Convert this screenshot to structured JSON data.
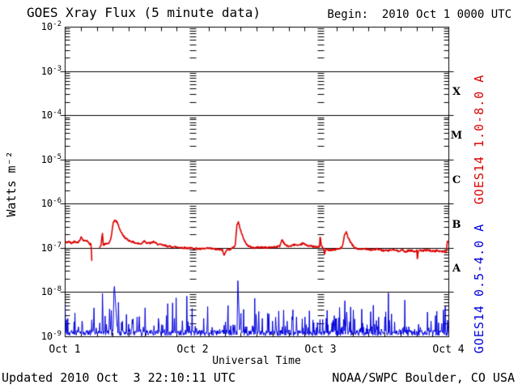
{
  "header": {
    "title": "GOES Xray Flux (5 minute data)",
    "begin_label": "Begin:  2010 Oct 1 0000 UTC"
  },
  "footer": {
    "updated": "Updated 2010 Oct  3 22:10:11 UTC",
    "source": "NOAA/SWPC Boulder, CO USA"
  },
  "colors": {
    "background": "#ffffff",
    "axis": "#000000",
    "long_channel": "#dc0000",
    "short_channel": "#0000dc"
  },
  "chart_data": {
    "type": "line",
    "title": "GOES Xray Flux (5 minute data)",
    "xlabel": "Universal Time",
    "ylabel": "Watts m⁻²",
    "begin": "2010 Oct 1 0000 UTC",
    "x_ticks": [
      "Oct 1",
      "Oct 2",
      "Oct 3",
      "Oct 4"
    ],
    "x_range_hours": [
      0,
      72
    ],
    "x_minor_tick_hours": 3,
    "y_scale": "log",
    "y_range": [
      1e-09,
      0.01
    ],
    "y_tick_exponents": [
      -2,
      -3,
      -4,
      -5,
      -6,
      -7,
      -8,
      -9
    ],
    "grid": {
      "horizontal_major": "solid",
      "day_boundary_columns": "log-minor-dashes"
    },
    "legend_position": "right-rotated",
    "flare_classes": [
      {
        "label": "X",
        "between_exponents": [
          -4,
          -3
        ]
      },
      {
        "label": "M",
        "between_exponents": [
          -5,
          -4
        ]
      },
      {
        "label": "C",
        "between_exponents": [
          -6,
          -5
        ]
      },
      {
        "label": "B",
        "between_exponents": [
          -7,
          -6
        ]
      },
      {
        "label": "A",
        "between_exponents": [
          -8,
          -7
        ]
      }
    ],
    "series": [
      {
        "name": "GOES14 1.0-8.0 A",
        "color": "#dc0000",
        "kind": "keypoints_log_interp",
        "sample_minutes": 5,
        "noise_decades": 0.04,
        "keypoints": [
          [
            0,
            1.35e-07
          ],
          [
            0.7,
            1.4e-07
          ],
          [
            1.2,
            1.3e-07
          ],
          [
            1.8,
            1.45e-07
          ],
          [
            2.3,
            1.35e-07
          ],
          [
            2.8,
            1.5e-07
          ],
          [
            3.0,
            1.9e-07
          ],
          [
            3.3,
            1.55e-07
          ],
          [
            3.8,
            1.45e-07
          ],
          [
            4.1,
            1.55e-07
          ],
          [
            4.4,
            1.3e-07
          ],
          [
            4.9,
            1.2e-07
          ],
          [
            4.95,
            5.5e-08
          ],
          [
            5.1,
            5.5e-08
          ],
          [
            5.15,
            null
          ],
          [
            6.4,
            1.05e-07
          ],
          [
            6.7,
            1.1e-07
          ],
          [
            7.0,
            2.2e-07
          ],
          [
            7.15,
            1.2e-07
          ],
          [
            7.6,
            1.25e-07
          ],
          [
            8.2,
            1.3e-07
          ],
          [
            8.6,
            1.6e-07
          ],
          [
            9.0,
            3.8e-07
          ],
          [
            9.4,
            4.3e-07
          ],
          [
            9.8,
            3.8e-07
          ],
          [
            10.3,
            2.6e-07
          ],
          [
            10.8,
            2e-07
          ],
          [
            11.4,
            1.65e-07
          ],
          [
            12.0,
            1.5e-07
          ],
          [
            12.6,
            1.4e-07
          ],
          [
            13.4,
            1.3e-07
          ],
          [
            14.2,
            1.25e-07
          ],
          [
            14.9,
            1.5e-07
          ],
          [
            15.3,
            1.32e-07
          ],
          [
            16.1,
            1.3e-07
          ],
          [
            16.6,
            1.42e-07
          ],
          [
            17.2,
            1.25e-07
          ],
          [
            18.2,
            1.18e-07
          ],
          [
            19.5,
            1.1e-07
          ],
          [
            21,
            1.06e-07
          ],
          [
            22.5,
            1.02e-07
          ],
          [
            24,
            1e-07
          ],
          [
            25.5,
            9.6e-08
          ],
          [
            27,
            1e-07
          ],
          [
            28.5,
            9.4e-08
          ],
          [
            29.5,
            9.2e-08
          ],
          [
            29.85,
            6.8e-08
          ],
          [
            30.2,
            9.2e-08
          ],
          [
            31.2,
            9.6e-08
          ],
          [
            31.9,
            1.15e-07
          ],
          [
            32.25,
            3.4e-07
          ],
          [
            32.5,
            3.9e-07
          ],
          [
            32.9,
            2.7e-07
          ],
          [
            33.4,
            1.7e-07
          ],
          [
            34,
            1.25e-07
          ],
          [
            34.6,
            1.08e-07
          ],
          [
            35.5,
            1.02e-07
          ],
          [
            36.5,
            1.06e-07
          ],
          [
            38,
            1.03e-07
          ],
          [
            39.5,
            1.08e-07
          ],
          [
            40.3,
            1.12e-07
          ],
          [
            40.7,
            1.6e-07
          ],
          [
            41.1,
            1.3e-07
          ],
          [
            41.6,
            1.12e-07
          ],
          [
            42.3,
            1.12e-07
          ],
          [
            43.1,
            1.22e-07
          ],
          [
            43.8,
            1.12e-07
          ],
          [
            44.6,
            1.3e-07
          ],
          [
            45.2,
            1.18e-07
          ],
          [
            46.2,
            1.12e-07
          ],
          [
            47.2,
            1.06e-07
          ],
          [
            47.75,
            1.1e-07
          ],
          [
            47.85,
            2.05e-07
          ],
          [
            48.05,
            1.15e-07
          ],
          [
            48.5,
            9.8e-08
          ],
          [
            48.7,
            7.2e-08
          ],
          [
            48.9,
            9.4e-08
          ],
          [
            50,
            9.2e-08
          ],
          [
            51.2,
            9.6e-08
          ],
          [
            52,
            1.05e-07
          ],
          [
            52.4,
            1.9e-07
          ],
          [
            52.75,
            2.3e-07
          ],
          [
            53.3,
            1.55e-07
          ],
          [
            53.9,
            1.18e-07
          ],
          [
            54.5,
            1e-07
          ],
          [
            55.5,
            9.4e-08
          ],
          [
            56.5,
            9.8e-08
          ],
          [
            57.5,
            9.2e-08
          ],
          [
            58.5,
            9.6e-08
          ],
          [
            59.5,
            9e-08
          ],
          [
            60.5,
            8.8e-08
          ],
          [
            61.5,
            9.3e-08
          ],
          [
            62.5,
            8.7e-08
          ],
          [
            63.3,
            9.2e-08
          ],
          [
            63.8,
            8.2e-08
          ],
          [
            64.5,
            9e-08
          ],
          [
            65.5,
            8.6e-08
          ],
          [
            66.0,
            8.8e-08
          ],
          [
            66.1,
            5.2e-08
          ],
          [
            66.25,
            8.8e-08
          ],
          [
            67,
            8.8e-08
          ],
          [
            68,
            9.2e-08
          ],
          [
            69,
            8.6e-08
          ],
          [
            70,
            8.8e-08
          ],
          [
            71,
            8.4e-08
          ],
          [
            71.55,
            8.2e-08
          ],
          [
            71.7,
            1.45e-07
          ],
          [
            72,
            1.35e-07
          ]
        ]
      },
      {
        "name": "GOES14 0.5-4.0 A",
        "color": "#0000dc",
        "kind": "baseline_plus_spikes",
        "sample_minutes": 5,
        "baseline": 1.05e-09,
        "baseline_noise_decades": 0.13,
        "hash_spike_probability": 0.32,
        "hash_spike_max_decades": 0.5,
        "spikes": [
          [
            0.5,
            2.6e-09,
            0.1
          ],
          [
            1.2,
            3e-09,
            0.15
          ],
          [
            2.1,
            2.5e-09,
            0.1
          ],
          [
            3.2,
            4.2e-09,
            0.15
          ],
          [
            4.1,
            2.8e-09,
            0.1
          ],
          [
            5.0,
            2.4e-09,
            0.1
          ],
          [
            5.8,
            3e-09,
            0.12
          ],
          [
            7.0,
            9.5e-09,
            0.18
          ],
          [
            7.7,
            5e-09,
            0.12
          ],
          [
            8.3,
            5.5e-09,
            0.3
          ],
          [
            9.2,
            1.7e-08,
            0.55
          ],
          [
            10.0,
            6e-09,
            0.2
          ],
          [
            10.7,
            4e-09,
            0.2
          ],
          [
            11.5,
            3.2e-09,
            0.15
          ],
          [
            12.6,
            4.2e-09,
            0.2
          ],
          [
            13.5,
            2.8e-09,
            0.1
          ],
          [
            15.0,
            4.5e-09,
            0.2
          ],
          [
            16.2,
            3e-09,
            0.12
          ],
          [
            17.5,
            2.6e-09,
            0.1
          ],
          [
            19.0,
            3e-09,
            0.15
          ],
          [
            20.5,
            2.6e-09,
            0.1
          ],
          [
            22.0,
            2.3e-09,
            0.1
          ],
          [
            23.2,
            2.8e-09,
            0.1
          ],
          [
            24.6,
            3e-09,
            0.12
          ],
          [
            26.0,
            2.6e-09,
            0.1
          ],
          [
            27.6,
            3.4e-09,
            0.15
          ],
          [
            29.1,
            2.6e-09,
            0.1
          ],
          [
            30.5,
            3.2e-09,
            0.12
          ],
          [
            31.6,
            4e-09,
            0.12
          ],
          [
            32.4,
            2.1e-08,
            0.3
          ],
          [
            32.95,
            6e-09,
            0.2
          ],
          [
            33.8,
            3.2e-09,
            0.12
          ],
          [
            35.8,
            4e-09,
            0.35
          ],
          [
            37.0,
            2.6e-09,
            0.1
          ],
          [
            38.0,
            3.4e-09,
            0.15
          ],
          [
            39.5,
            2.8e-09,
            0.1
          ],
          [
            41.0,
            4e-09,
            0.2
          ],
          [
            42.6,
            4.4e-09,
            0.25
          ],
          [
            43.4,
            3.6e-09,
            0.15
          ],
          [
            45.0,
            2.8e-09,
            0.12
          ],
          [
            46.5,
            2.4e-09,
            0.1
          ],
          [
            47.7,
            3.2e-09,
            0.15
          ],
          [
            49.0,
            2.6e-09,
            0.1
          ],
          [
            50.5,
            3e-09,
            0.12
          ],
          [
            51.5,
            4.6e-09,
            0.2
          ],
          [
            52.8,
            4.2e-09,
            0.5
          ],
          [
            54.2,
            3e-09,
            0.12
          ],
          [
            55.8,
            3.4e-09,
            0.15
          ],
          [
            57.3,
            5e-09,
            0.25
          ],
          [
            58.4,
            3.2e-09,
            0.12
          ],
          [
            60.0,
            2.8e-09,
            0.1
          ],
          [
            61.8,
            3.6e-09,
            0.15
          ],
          [
            63.2,
            3e-09,
            0.12
          ],
          [
            64.8,
            2.6e-09,
            0.1
          ],
          [
            66.3,
            3.2e-09,
            0.15
          ],
          [
            68.0,
            3.6e-09,
            0.2
          ],
          [
            69.5,
            3e-09,
            0.12
          ],
          [
            71.0,
            4e-09,
            0.2
          ],
          [
            71.8,
            3.4e-09,
            0.12
          ]
        ]
      }
    ]
  }
}
